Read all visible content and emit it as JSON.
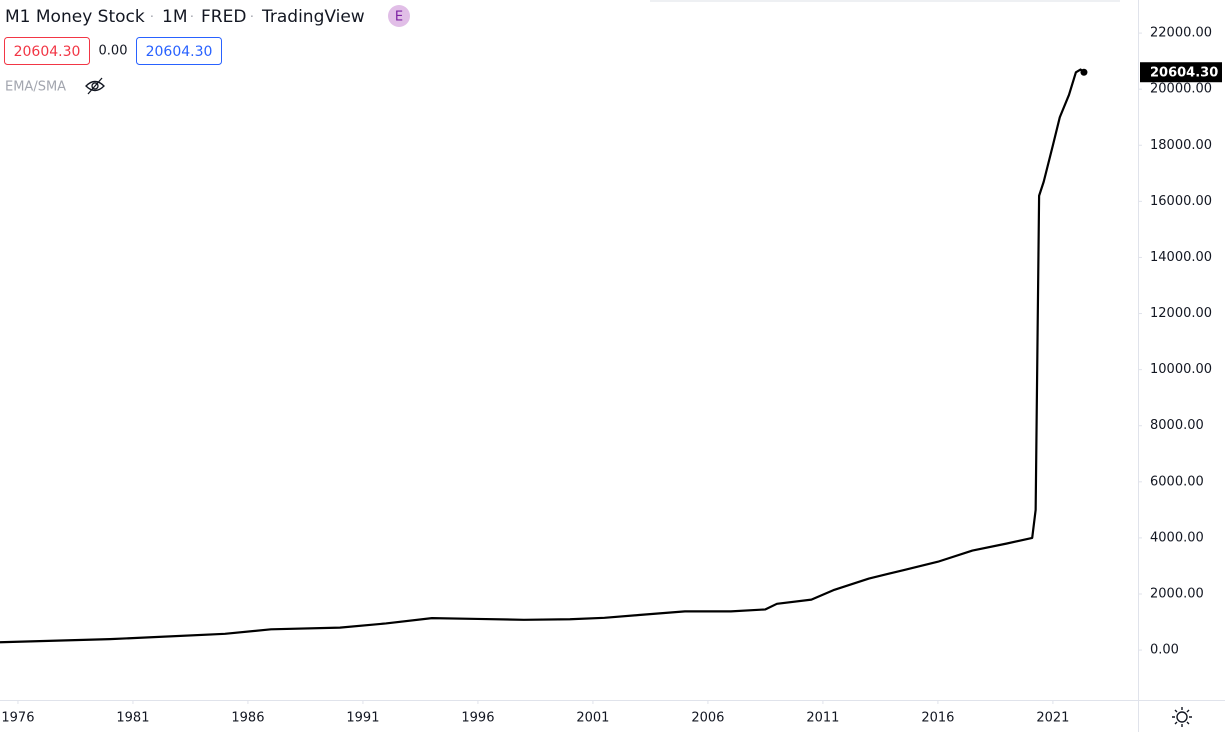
{
  "header": {
    "title": "M1 Money Stock",
    "interval": "1M",
    "source": "FRED",
    "platform": "TradingView",
    "badge": "E",
    "open_box": "20604.30",
    "change": "0.00",
    "close_box": "20604.30",
    "indicator": "EMA/SMA"
  },
  "chart_data": {
    "type": "line",
    "color": "#000000",
    "x": [
      1975.22,
      1980,
      1985,
      1987,
      1990,
      1992,
      1994,
      1996,
      1998,
      2000,
      2001.5,
      2003,
      2005,
      2007,
      2008.5,
      2009,
      2010.5,
      2011.5,
      2013,
      2014.5,
      2016,
      2017.5,
      2019,
      2020.1,
      2020.25,
      2020.4,
      2020.6,
      2021.0,
      2021.3,
      2021.7,
      2022.0,
      2022.2,
      2022.35
    ],
    "series": [
      {
        "name": "M1 Money Stock",
        "color": "#000000",
        "values": [
          280,
          390,
          580,
          740,
          800,
          950,
          1140,
          1110,
          1080,
          1100,
          1150,
          1250,
          1380,
          1380,
          1450,
          1650,
          1800,
          2150,
          2550,
          2850,
          3150,
          3550,
          3800,
          4000,
          5000,
          16200,
          16700,
          18000,
          19000,
          19800,
          20600,
          20700,
          20604.3
        ]
      }
    ],
    "price_label": "20604.30",
    "xlim": [
      1975.22,
      2024.7
    ],
    "xticks": [
      1976,
      1981,
      1986,
      1991,
      1996,
      2001,
      2006,
      2011,
      2016,
      2021
    ],
    "ylim": [
      -1780,
      23180
    ],
    "yticks": [
      {
        "value": 0,
        "label": "0.00"
      },
      {
        "value": 2000,
        "label": "2000.00"
      },
      {
        "value": 4000,
        "label": "4000.00"
      },
      {
        "value": 6000,
        "label": "6000.00"
      },
      {
        "value": 8000,
        "label": "8000.00"
      },
      {
        "value": 10000,
        "label": "10000.00"
      },
      {
        "value": 12000,
        "label": "12000.00"
      },
      {
        "value": 14000,
        "label": "14000.00"
      },
      {
        "value": 16000,
        "label": "16000.00"
      },
      {
        "value": 18000,
        "label": "18000.00"
      },
      {
        "value": 20000,
        "label": "20000.00"
      },
      {
        "value": 22000,
        "label": "22000.00"
      }
    ],
    "grid": false
  }
}
